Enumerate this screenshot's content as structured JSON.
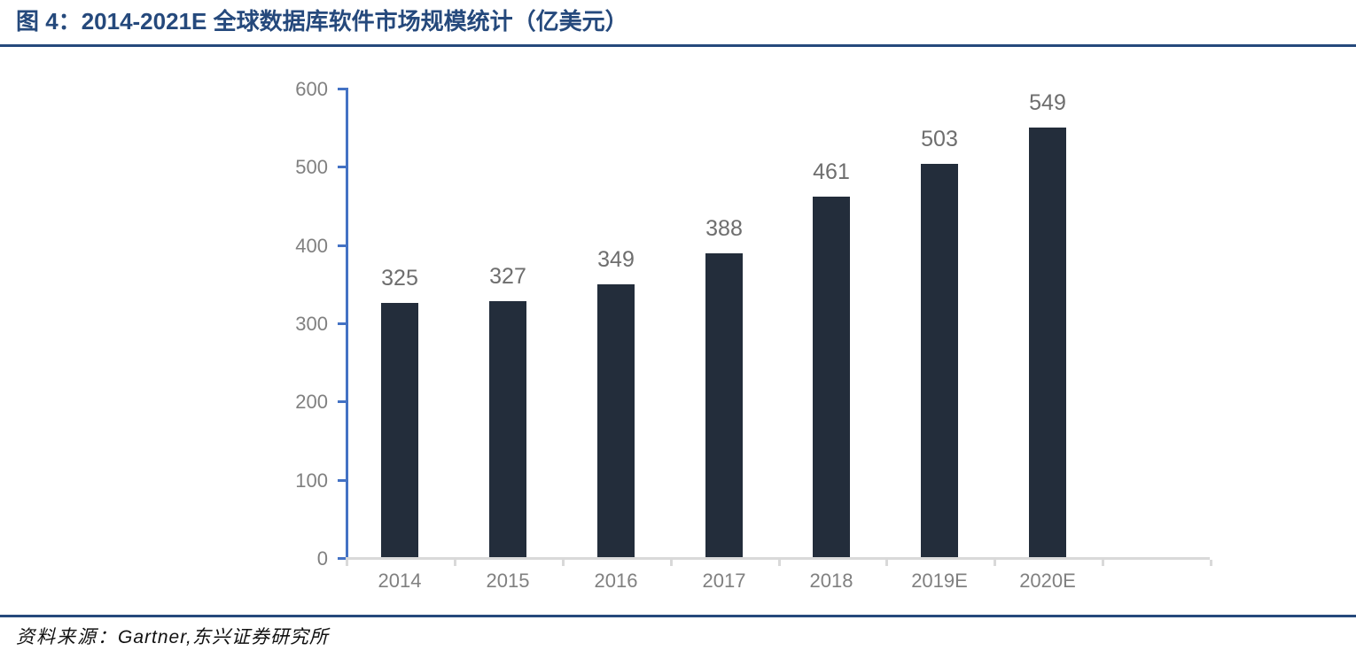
{
  "figure": {
    "label": "图 4：",
    "title": "2014-2021E 全球数据库软件市场规模统计（亿美元）"
  },
  "chart_data": {
    "type": "bar",
    "categories": [
      "2014",
      "2015",
      "2016",
      "2017",
      "2018",
      "2019E",
      "2020E"
    ],
    "values": [
      325,
      327,
      349,
      388,
      461,
      503,
      549
    ],
    "title": "2014-2021E 全球数据库软件市场规模统计（亿美元）",
    "xlabel": "",
    "ylabel": "",
    "ylim": [
      0,
      600
    ],
    "yticks": [
      0,
      100,
      200,
      300,
      400,
      500,
      600
    ],
    "grid": false,
    "legend": null,
    "data_labels": true,
    "extra_empty_slots": 1
  },
  "footer": {
    "label": "资料来源：",
    "text": "Gartner,东兴证券研究所"
  },
  "colors": {
    "title": "#25497C",
    "rule": "#25497C",
    "y_axis": "#4472C4",
    "x_axis": "#D9D9D9",
    "axis_label": "#808080",
    "data_label": "#6E6E6E",
    "bar": "#232D3B"
  }
}
